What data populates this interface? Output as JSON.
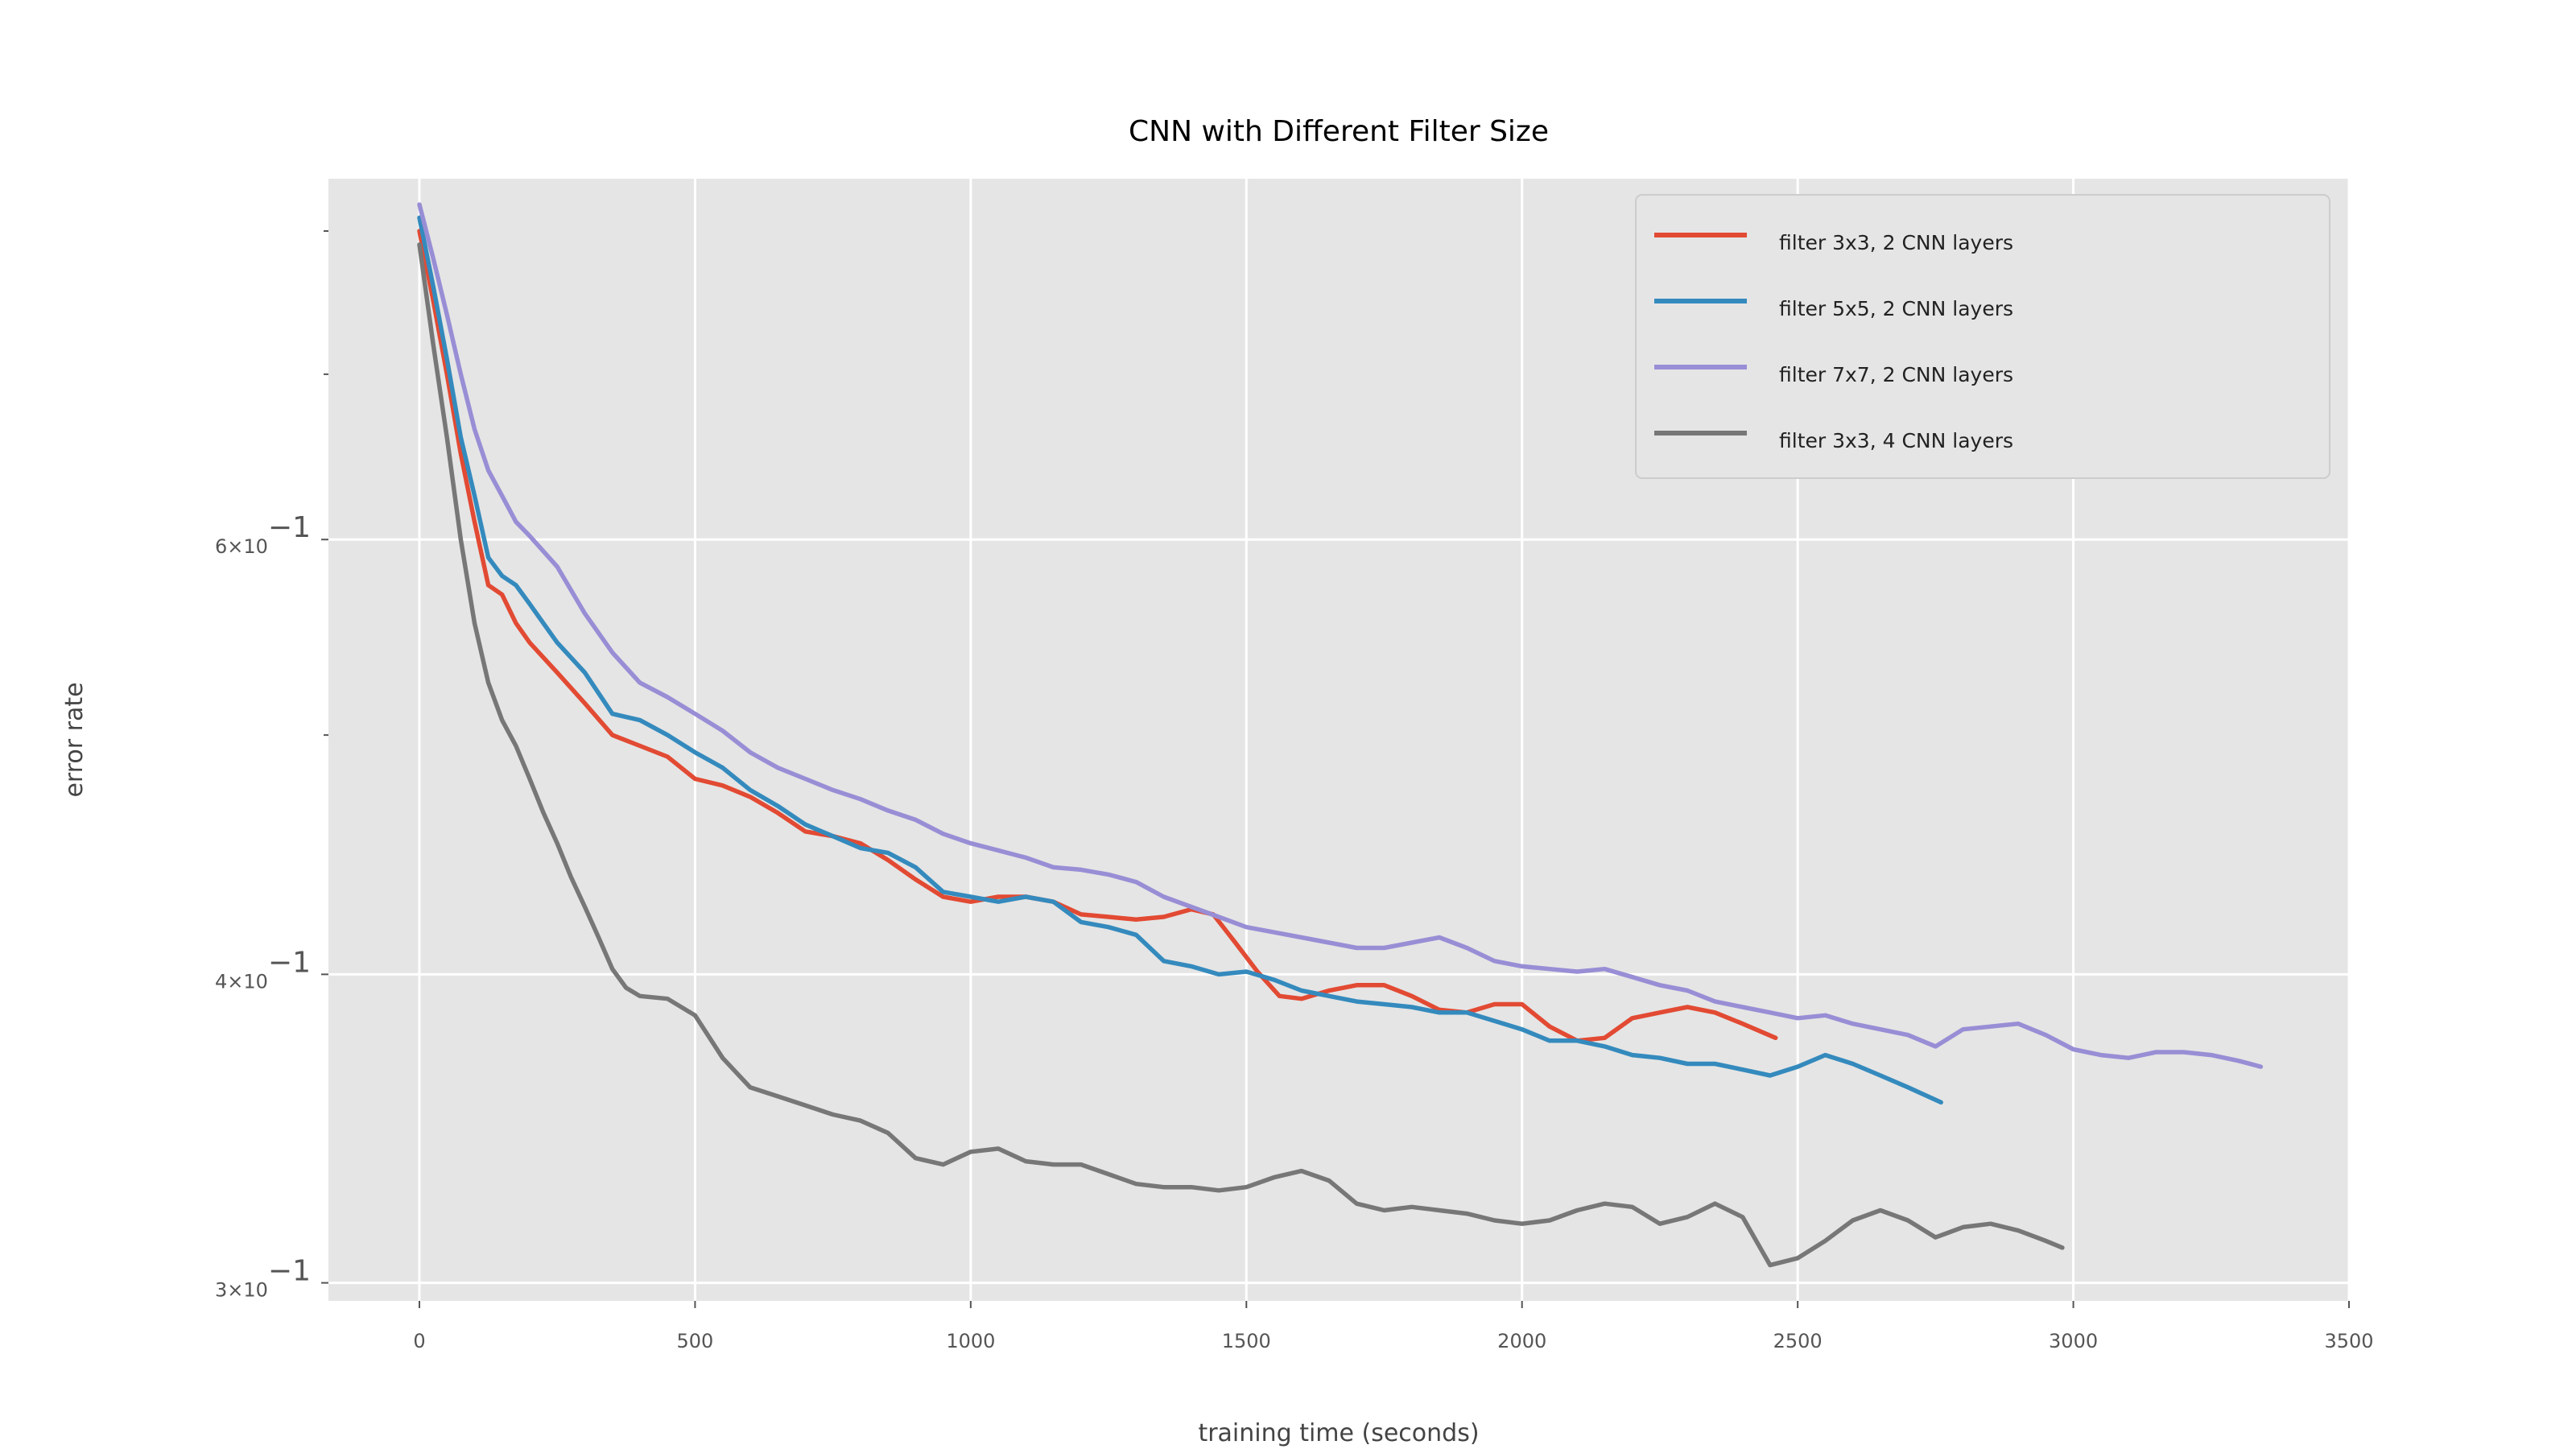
{
  "chart_data": {
    "type": "line",
    "title": "CNN with Different Filter Size",
    "xlabel": "training time (seconds)",
    "ylabel": "error rate",
    "xlim": [
      -165,
      3500
    ],
    "ylim": [
      0.295,
      0.84
    ],
    "y_scale": "log",
    "grid": true,
    "legend_position": "top-right",
    "x_ticks": [
      {
        "value": 0,
        "label": "0"
      },
      {
        "value": 500,
        "label": "500"
      },
      {
        "value": 1000,
        "label": "1000"
      },
      {
        "value": 1500,
        "label": "1500"
      },
      {
        "value": 2000,
        "label": "2000"
      },
      {
        "value": 2500,
        "label": "2500"
      },
      {
        "value": 3000,
        "label": "3000"
      },
      {
        "value": 3500,
        "label": "3500"
      }
    ],
    "y_ticks": [
      {
        "value": 0.3,
        "base": "3",
        "exp": "−1"
      },
      {
        "value": 0.4,
        "base": "4",
        "exp": "−1"
      },
      {
        "value": 0.6,
        "base": "6",
        "exp": "−1"
      }
    ],
    "y_minor_ticks": [
      0.5,
      0.7,
      0.8
    ],
    "series": [
      {
        "name": "filter 3x3, 2 CNN layers",
        "color": "#E24A33",
        "points": [
          [
            0,
            0.8
          ],
          [
            25,
            0.75
          ],
          [
            50,
            0.7
          ],
          [
            75,
            0.65
          ],
          [
            100,
            0.61
          ],
          [
            125,
            0.575
          ],
          [
            150,
            0.57
          ],
          [
            175,
            0.555
          ],
          [
            200,
            0.545
          ],
          [
            250,
            0.53
          ],
          [
            300,
            0.515
          ],
          [
            350,
            0.5
          ],
          [
            400,
            0.495
          ],
          [
            450,
            0.49
          ],
          [
            500,
            0.48
          ],
          [
            550,
            0.477
          ],
          [
            600,
            0.472
          ],
          [
            650,
            0.465
          ],
          [
            700,
            0.457
          ],
          [
            750,
            0.455
          ],
          [
            800,
            0.452
          ],
          [
            850,
            0.445
          ],
          [
            900,
            0.437
          ],
          [
            950,
            0.43
          ],
          [
            1000,
            0.428
          ],
          [
            1050,
            0.43
          ],
          [
            1100,
            0.43
          ],
          [
            1150,
            0.428
          ],
          [
            1200,
            0.423
          ],
          [
            1250,
            0.422
          ],
          [
            1300,
            0.421
          ],
          [
            1350,
            0.422
          ],
          [
            1400,
            0.425
          ],
          [
            1440,
            0.423
          ],
          [
            1480,
            0.412
          ],
          [
            1520,
            0.401
          ],
          [
            1560,
            0.392
          ],
          [
            1600,
            0.391
          ],
          [
            1650,
            0.394
          ],
          [
            1700,
            0.396
          ],
          [
            1750,
            0.396
          ],
          [
            1800,
            0.392
          ],
          [
            1850,
            0.387
          ],
          [
            1900,
            0.386
          ],
          [
            1950,
            0.389
          ],
          [
            2000,
            0.389
          ],
          [
            2050,
            0.381
          ],
          [
            2100,
            0.376
          ],
          [
            2150,
            0.377
          ],
          [
            2200,
            0.384
          ],
          [
            2250,
            0.386
          ],
          [
            2300,
            0.388
          ],
          [
            2350,
            0.386
          ],
          [
            2400,
            0.382
          ],
          [
            2460,
            0.377
          ]
        ]
      },
      {
        "name": "filter 5x5, 2 CNN layers",
        "color": "#348ABD",
        "points": [
          [
            0,
            0.81
          ],
          [
            25,
            0.76
          ],
          [
            50,
            0.71
          ],
          [
            75,
            0.66
          ],
          [
            100,
            0.625
          ],
          [
            125,
            0.59
          ],
          [
            150,
            0.58
          ],
          [
            175,
            0.575
          ],
          [
            200,
            0.565
          ],
          [
            250,
            0.545
          ],
          [
            300,
            0.53
          ],
          [
            350,
            0.51
          ],
          [
            400,
            0.507
          ],
          [
            450,
            0.5
          ],
          [
            500,
            0.492
          ],
          [
            550,
            0.485
          ],
          [
            600,
            0.475
          ],
          [
            650,
            0.468
          ],
          [
            700,
            0.46
          ],
          [
            750,
            0.455
          ],
          [
            800,
            0.45
          ],
          [
            850,
            0.448
          ],
          [
            900,
            0.442
          ],
          [
            950,
            0.432
          ],
          [
            1000,
            0.43
          ],
          [
            1050,
            0.428
          ],
          [
            1100,
            0.43
          ],
          [
            1150,
            0.428
          ],
          [
            1200,
            0.42
          ],
          [
            1250,
            0.418
          ],
          [
            1300,
            0.415
          ],
          [
            1350,
            0.405
          ],
          [
            1400,
            0.403
          ],
          [
            1450,
            0.4
          ],
          [
            1500,
            0.401
          ],
          [
            1550,
            0.398
          ],
          [
            1600,
            0.394
          ],
          [
            1650,
            0.392
          ],
          [
            1700,
            0.39
          ],
          [
            1750,
            0.389
          ],
          [
            1800,
            0.388
          ],
          [
            1850,
            0.386
          ],
          [
            1900,
            0.386
          ],
          [
            1950,
            0.383
          ],
          [
            2000,
            0.38
          ],
          [
            2050,
            0.376
          ],
          [
            2100,
            0.376
          ],
          [
            2150,
            0.374
          ],
          [
            2200,
            0.371
          ],
          [
            2250,
            0.37
          ],
          [
            2300,
            0.368
          ],
          [
            2350,
            0.368
          ],
          [
            2400,
            0.366
          ],
          [
            2450,
            0.364
          ],
          [
            2500,
            0.367
          ],
          [
            2550,
            0.371
          ],
          [
            2600,
            0.368
          ],
          [
            2650,
            0.364
          ],
          [
            2700,
            0.36
          ],
          [
            2760,
            0.355
          ]
        ]
      },
      {
        "name": "filter 7x7, 2 CNN layers",
        "color": "#988ED5",
        "points": [
          [
            0,
            0.82
          ],
          [
            25,
            0.78
          ],
          [
            50,
            0.74
          ],
          [
            75,
            0.7
          ],
          [
            100,
            0.665
          ],
          [
            125,
            0.64
          ],
          [
            150,
            0.625
          ],
          [
            175,
            0.61
          ],
          [
            200,
            0.602
          ],
          [
            250,
            0.585
          ],
          [
            300,
            0.56
          ],
          [
            350,
            0.54
          ],
          [
            400,
            0.525
          ],
          [
            450,
            0.518
          ],
          [
            500,
            0.51
          ],
          [
            550,
            0.502
          ],
          [
            600,
            0.492
          ],
          [
            650,
            0.485
          ],
          [
            700,
            0.48
          ],
          [
            750,
            0.475
          ],
          [
            800,
            0.471
          ],
          [
            850,
            0.466
          ],
          [
            900,
            0.462
          ],
          [
            950,
            0.456
          ],
          [
            1000,
            0.452
          ],
          [
            1050,
            0.449
          ],
          [
            1100,
            0.446
          ],
          [
            1150,
            0.442
          ],
          [
            1200,
            0.441
          ],
          [
            1250,
            0.439
          ],
          [
            1300,
            0.436
          ],
          [
            1350,
            0.43
          ],
          [
            1400,
            0.426
          ],
          [
            1450,
            0.422
          ],
          [
            1500,
            0.418
          ],
          [
            1550,
            0.416
          ],
          [
            1600,
            0.414
          ],
          [
            1650,
            0.412
          ],
          [
            1700,
            0.41
          ],
          [
            1750,
            0.41
          ],
          [
            1800,
            0.412
          ],
          [
            1850,
            0.414
          ],
          [
            1900,
            0.41
          ],
          [
            1950,
            0.405
          ],
          [
            2000,
            0.403
          ],
          [
            2050,
            0.402
          ],
          [
            2100,
            0.401
          ],
          [
            2150,
            0.402
          ],
          [
            2200,
            0.399
          ],
          [
            2250,
            0.396
          ],
          [
            2300,
            0.394
          ],
          [
            2350,
            0.39
          ],
          [
            2400,
            0.388
          ],
          [
            2450,
            0.386
          ],
          [
            2500,
            0.384
          ],
          [
            2550,
            0.385
          ],
          [
            2600,
            0.382
          ],
          [
            2650,
            0.38
          ],
          [
            2700,
            0.378
          ],
          [
            2750,
            0.374
          ],
          [
            2800,
            0.38
          ],
          [
            2850,
            0.381
          ],
          [
            2900,
            0.382
          ],
          [
            2950,
            0.378
          ],
          [
            3000,
            0.373
          ],
          [
            3050,
            0.371
          ],
          [
            3100,
            0.37
          ],
          [
            3150,
            0.372
          ],
          [
            3200,
            0.372
          ],
          [
            3250,
            0.371
          ],
          [
            3300,
            0.369
          ],
          [
            3340,
            0.367
          ]
        ]
      },
      {
        "name": "filter 3x3, 4 CNN layers",
        "color": "#777777",
        "points": [
          [
            0,
            0.79
          ],
          [
            25,
            0.72
          ],
          [
            50,
            0.66
          ],
          [
            75,
            0.6
          ],
          [
            100,
            0.555
          ],
          [
            125,
            0.525
          ],
          [
            150,
            0.507
          ],
          [
            175,
            0.495
          ],
          [
            200,
            0.48
          ],
          [
            225,
            0.465
          ],
          [
            250,
            0.452
          ],
          [
            275,
            0.438
          ],
          [
            300,
            0.426
          ],
          [
            325,
            0.414
          ],
          [
            350,
            0.402
          ],
          [
            375,
            0.395
          ],
          [
            400,
            0.392
          ],
          [
            450,
            0.391
          ],
          [
            500,
            0.385
          ],
          [
            550,
            0.37
          ],
          [
            600,
            0.36
          ],
          [
            650,
            0.357
          ],
          [
            700,
            0.354
          ],
          [
            750,
            0.351
          ],
          [
            800,
            0.349
          ],
          [
            850,
            0.345
          ],
          [
            900,
            0.337
          ],
          [
            950,
            0.335
          ],
          [
            1000,
            0.339
          ],
          [
            1050,
            0.34
          ],
          [
            1100,
            0.336
          ],
          [
            1150,
            0.335
          ],
          [
            1200,
            0.335
          ],
          [
            1250,
            0.332
          ],
          [
            1300,
            0.329
          ],
          [
            1350,
            0.328
          ],
          [
            1400,
            0.328
          ],
          [
            1450,
            0.327
          ],
          [
            1500,
            0.328
          ],
          [
            1550,
            0.331
          ],
          [
            1600,
            0.333
          ],
          [
            1650,
            0.33
          ],
          [
            1700,
            0.323
          ],
          [
            1750,
            0.321
          ],
          [
            1800,
            0.322
          ],
          [
            1850,
            0.321
          ],
          [
            1900,
            0.32
          ],
          [
            1950,
            0.318
          ],
          [
            2000,
            0.317
          ],
          [
            2050,
            0.318
          ],
          [
            2100,
            0.321
          ],
          [
            2150,
            0.323
          ],
          [
            2200,
            0.322
          ],
          [
            2250,
            0.317
          ],
          [
            2300,
            0.319
          ],
          [
            2350,
            0.323
          ],
          [
            2400,
            0.319
          ],
          [
            2450,
            0.305
          ],
          [
            2500,
            0.307
          ],
          [
            2550,
            0.312
          ],
          [
            2600,
            0.318
          ],
          [
            2650,
            0.321
          ],
          [
            2700,
            0.318
          ],
          [
            2750,
            0.313
          ],
          [
            2800,
            0.316
          ],
          [
            2850,
            0.317
          ],
          [
            2900,
            0.315
          ],
          [
            2950,
            0.312
          ],
          [
            2980,
            0.31
          ]
        ]
      }
    ]
  }
}
